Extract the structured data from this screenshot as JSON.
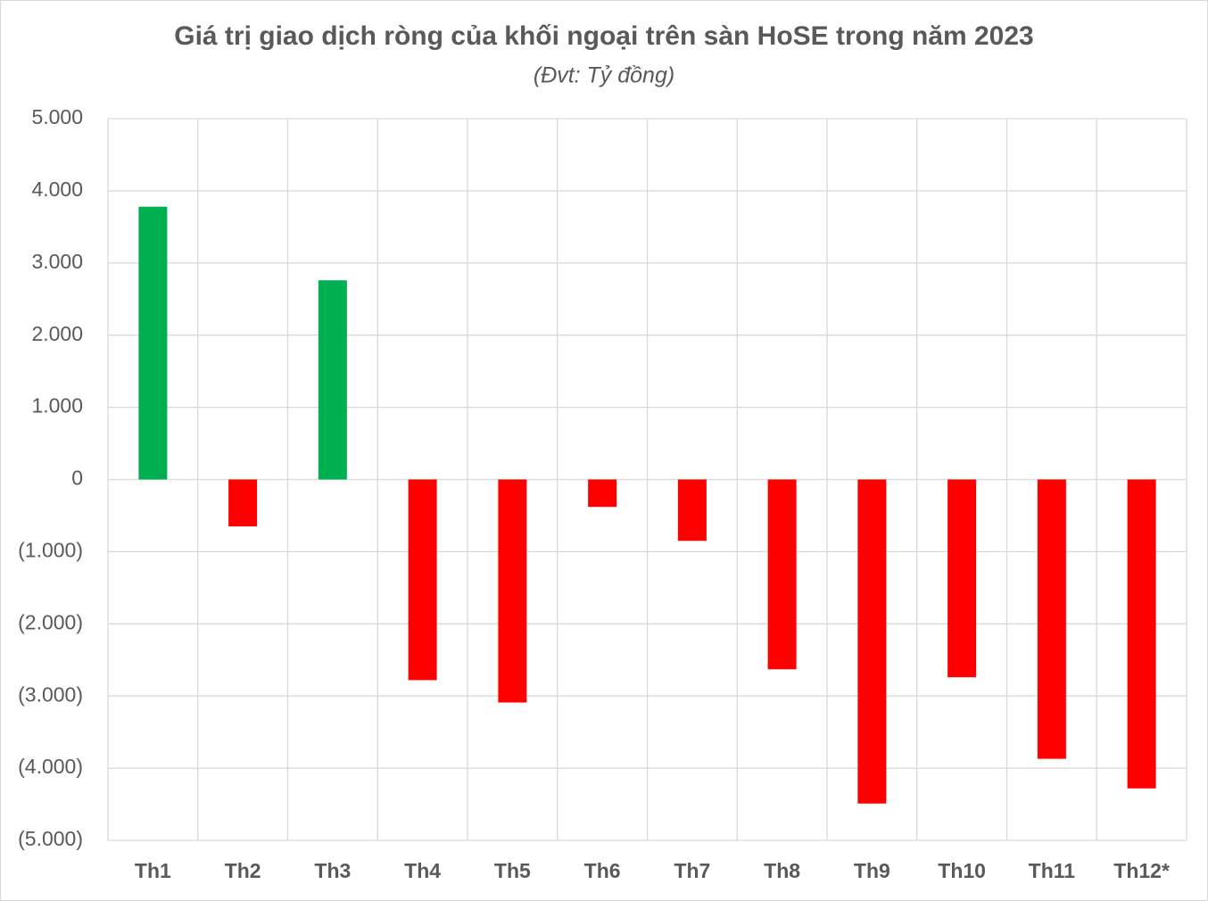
{
  "chart_data": {
    "type": "bar",
    "title": "Giá trị giao dịch ròng của khối ngoại trên sàn HoSE trong năm 2023",
    "subtitle": "(Đvt: Tỷ đồng)",
    "categories": [
      "Th1",
      "Th2",
      "Th3",
      "Th4",
      "Th5",
      "Th6",
      "Th7",
      "Th8",
      "Th9",
      "Th10",
      "Th11",
      "Th12*"
    ],
    "values": [
      3780,
      -650,
      2760,
      -2780,
      -3090,
      -380,
      -850,
      -2630,
      -4490,
      -2740,
      -3870,
      -4280
    ],
    "positive_color": "#00b050",
    "negative_color": "#ff0000",
    "ylim": [
      -5000,
      5000
    ],
    "yticks": [
      {
        "value": -5000,
        "label": "(5.000)"
      },
      {
        "value": -4000,
        "label": "(4.000)"
      },
      {
        "value": -3000,
        "label": "(3.000)"
      },
      {
        "value": -2000,
        "label": "(2.000)"
      },
      {
        "value": -1000,
        "label": "(1.000)"
      },
      0,
      {
        "value": 1000,
        "label": "1.000"
      },
      {
        "value": 2000,
        "label": "2.000"
      },
      {
        "value": 3000,
        "label": "3.000"
      },
      {
        "value": 4000,
        "label": "4.000"
      },
      {
        "value": 5000,
        "label": "5.000"
      }
    ],
    "grid": true
  }
}
